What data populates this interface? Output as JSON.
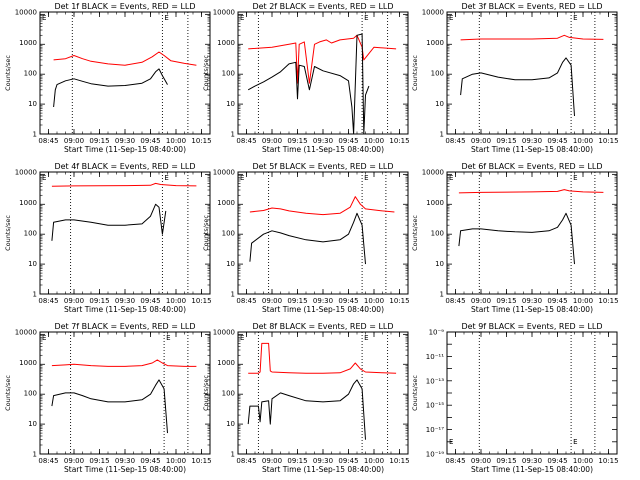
{
  "chart_data": [
    {
      "type": "line",
      "title": "Det 1f BLACK = Events, RED = LLD",
      "xlabel": "Start Time (11-Sep-15 08:40:00)",
      "ylabel": "Counts/sec",
      "yscale": "log",
      "ylim": [
        1,
        12000
      ],
      "ytick_labels": [
        "1",
        "10",
        "100",
        "1000",
        "10000"
      ],
      "xlim_minutes_after_start": [
        0,
        100
      ],
      "xtick_labels": [
        "08:45",
        "09:00",
        "09:15",
        "09:30",
        "09:45",
        "10:00",
        "10:15"
      ],
      "vlines": [
        "08:59",
        "09:52",
        "10:07"
      ],
      "markers": [
        "E",
        "E"
      ],
      "series": [
        {
          "color": "#ff0000",
          "x": [
            "08:48",
            "08:55",
            "09:00",
            "09:05",
            "09:10",
            "09:20",
            "09:30",
            "09:40",
            "09:46",
            "09:50",
            "09:53",
            "09:57",
            "10:05",
            "10:12"
          ],
          "y": [
            300,
            330,
            420,
            330,
            270,
            220,
            200,
            250,
            380,
            550,
            420,
            280,
            230,
            200
          ]
        },
        {
          "color": "#000000",
          "x": [
            "08:48",
            "08:49",
            "08:50",
            "08:55",
            "09:00",
            "09:05",
            "09:10",
            "09:20",
            "09:30",
            "09:40",
            "09:45",
            "09:48",
            "09:50",
            "09:52",
            "09:55"
          ],
          "y": [
            8,
            30,
            45,
            60,
            70,
            58,
            48,
            40,
            42,
            50,
            70,
            120,
            150,
            90,
            45
          ]
        }
      ]
    },
    {
      "type": "line",
      "title": "Det 2f BLACK = Events, RED = LLD",
      "xlabel": "Start Time (11-Sep-15 08:40:00)",
      "ylabel": "Counts/sec",
      "yscale": "log",
      "ylim": [
        1,
        12000
      ],
      "ytick_labels": [
        "1",
        "10",
        "100",
        "1000",
        "10000"
      ],
      "xlim_minutes_after_start": [
        0,
        100
      ],
      "xtick_labels": [
        "08:45",
        "09:00",
        "09:15",
        "09:30",
        "09:45",
        "10:00",
        "10:15"
      ],
      "vlines": [
        "08:52",
        "09:53",
        "10:08"
      ],
      "markers": [
        "E",
        "E"
      ],
      "series": [
        {
          "color": "#ff0000",
          "x": [
            "08:46",
            "09:00",
            "09:10",
            "09:14",
            "09:15",
            "09:16",
            "09:19",
            "09:22",
            "09:25",
            "09:28",
            "09:32",
            "09:35",
            "09:40",
            "09:48",
            "09:50",
            "09:53",
            "09:54",
            "10:00",
            "10:13"
          ],
          "y": [
            700,
            800,
            1000,
            1100,
            50,
            1000,
            1200,
            50,
            1000,
            1200,
            1400,
            1100,
            1400,
            1600,
            2000,
            800,
            300,
            800,
            700
          ]
        },
        {
          "color": "#000000",
          "x": [
            "08:46",
            "08:50",
            "08:55",
            "09:00",
            "09:05",
            "09:10",
            "09:14",
            "09:15",
            "09:16",
            "09:19",
            "09:22",
            "09:25",
            "09:30",
            "09:40",
            "09:45",
            "09:47",
            "09:48",
            "09:50",
            "09:53",
            "09:54",
            "09:55",
            "09:57"
          ],
          "y": [
            30,
            40,
            55,
            80,
            120,
            220,
            250,
            15,
            200,
            180,
            30,
            180,
            130,
            90,
            60,
            8,
            1,
            2000,
            2200,
            1,
            20,
            40
          ]
        }
      ]
    },
    {
      "type": "line",
      "title": "Det 3f BLACK = Events, RED = LLD",
      "xlabel": "Start Time (11-Sep-15 08:40:00)",
      "ylabel": "Counts/sec",
      "yscale": "log",
      "ylim": [
        1,
        12000
      ],
      "ytick_labels": [
        "1",
        "10",
        "100",
        "1000",
        "10000"
      ],
      "xlim_minutes_after_start": [
        0,
        100
      ],
      "xtick_labels": [
        "08:45",
        "09:00",
        "09:15",
        "09:30",
        "09:45",
        "10:00",
        "10:15"
      ],
      "vlines": [
        "08:59",
        "09:53",
        "10:07"
      ],
      "markers": [
        "E",
        "E"
      ],
      "series": [
        {
          "color": "#ff0000",
          "x": [
            "08:48",
            "09:00",
            "09:30",
            "09:45",
            "09:49",
            "09:52",
            "10:00",
            "10:12"
          ],
          "y": [
            1400,
            1500,
            1500,
            1600,
            2000,
            1700,
            1500,
            1450
          ]
        },
        {
          "color": "#000000",
          "x": [
            "08:48",
            "08:49",
            "08:55",
            "09:00",
            "09:10",
            "09:20",
            "09:30",
            "09:40",
            "09:45",
            "09:48",
            "09:50",
            "09:53",
            "09:55"
          ],
          "y": [
            20,
            70,
            100,
            110,
            80,
            65,
            65,
            75,
            110,
            250,
            350,
            200,
            4
          ]
        }
      ]
    },
    {
      "type": "line",
      "title": "Det 4f BLACK = Events, RED = LLD",
      "xlabel": "Start Time (11-Sep-15 08:40:00)",
      "ylabel": "Counts/sec",
      "yscale": "log",
      "ylim": [
        1,
        12000
      ],
      "ytick_labels": [
        "1",
        "10",
        "100",
        "1000",
        "10000"
      ],
      "xlim_minutes_after_start": [
        0,
        100
      ],
      "xtick_labels": [
        "08:45",
        "09:00",
        "09:15",
        "09:30",
        "09:45",
        "10:00",
        "10:15"
      ],
      "vlines": [
        "08:58",
        "09:52",
        "10:07"
      ],
      "markers": [
        "E",
        "E"
      ],
      "series": [
        {
          "color": "#ff0000",
          "x": [
            "08:47",
            "09:00",
            "09:30",
            "09:45",
            "09:48",
            "09:51",
            "10:00",
            "10:12"
          ],
          "y": [
            4000,
            4100,
            4200,
            4300,
            5000,
            4600,
            4200,
            4100
          ]
        },
        {
          "color": "#000000",
          "x": [
            "08:47",
            "08:48",
            "08:55",
            "09:00",
            "09:10",
            "09:20",
            "09:30",
            "09:40",
            "09:45",
            "09:48",
            "09:50",
            "09:52",
            "09:54"
          ],
          "y": [
            60,
            250,
            300,
            300,
            250,
            200,
            200,
            220,
            400,
            1000,
            800,
            100,
            600
          ]
        }
      ]
    },
    {
      "type": "line",
      "title": "Det 5f BLACK = Events, RED = LLD",
      "xlabel": "Start Time (11-Sep-15 08:40:00)",
      "ylabel": "Counts/sec",
      "yscale": "log",
      "ylim": [
        1,
        12000
      ],
      "ytick_labels": [
        "1",
        "10",
        "100",
        "1000",
        "10000"
      ],
      "xlim_minutes_after_start": [
        0,
        100
      ],
      "xtick_labels": [
        "08:45",
        "09:00",
        "09:15",
        "09:30",
        "09:45",
        "10:00",
        "10:15"
      ],
      "vlines": [
        "08:58",
        "09:53",
        "10:07"
      ],
      "markers": [
        "E",
        "E"
      ],
      "series": [
        {
          "color": "#ff0000",
          "x": [
            "08:47",
            "08:55",
            "09:00",
            "09:05",
            "09:10",
            "09:20",
            "09:30",
            "09:40",
            "09:46",
            "09:49",
            "09:52",
            "09:55",
            "10:05",
            "10:12"
          ],
          "y": [
            550,
            620,
            750,
            700,
            600,
            500,
            450,
            500,
            800,
            1800,
            1000,
            700,
            600,
            550
          ]
        },
        {
          "color": "#000000",
          "x": [
            "08:47",
            "08:48",
            "08:55",
            "09:00",
            "09:05",
            "09:10",
            "09:20",
            "09:30",
            "09:40",
            "09:45",
            "09:48",
            "09:50",
            "09:53",
            "09:55"
          ],
          "y": [
            12,
            50,
            100,
            130,
            110,
            90,
            65,
            55,
            65,
            100,
            250,
            500,
            200,
            10
          ]
        }
      ]
    },
    {
      "type": "line",
      "title": "Det 6f BLACK = Events, RED = LLD",
      "xlabel": "Start Time (11-Sep-15 08:40:00)",
      "ylabel": "Counts/sec",
      "yscale": "log",
      "ylim": [
        1,
        12000
      ],
      "ytick_labels": [
        "1",
        "10",
        "100",
        "1000",
        "10000"
      ],
      "xlim_minutes_after_start": [
        0,
        100
      ],
      "xtick_labels": [
        "08:45",
        "09:00",
        "09:15",
        "09:30",
        "09:45",
        "10:00",
        "10:15"
      ],
      "vlines": [
        "08:59",
        "09:53",
        "10:07"
      ],
      "markers": [
        "E",
        "E"
      ],
      "series": [
        {
          "color": "#ff0000",
          "x": [
            "08:47",
            "09:00",
            "09:30",
            "09:45",
            "09:49",
            "09:52",
            "10:00",
            "10:12"
          ],
          "y": [
            2400,
            2500,
            2600,
            2700,
            3100,
            2800,
            2600,
            2500
          ]
        },
        {
          "color": "#000000",
          "x": [
            "08:47",
            "08:48",
            "08:55",
            "09:00",
            "09:10",
            "09:20",
            "09:30",
            "09:40",
            "09:45",
            "09:48",
            "09:50",
            "09:53",
            "09:55"
          ],
          "y": [
            40,
            130,
            150,
            150,
            130,
            120,
            115,
            130,
            170,
            300,
            500,
            200,
            10
          ]
        }
      ]
    },
    {
      "type": "line",
      "title": "Det 7f BLACK = Events, RED = LLD",
      "xlabel": "Start Time (11-Sep-15 08:40:00)",
      "ylabel": "Counts/sec",
      "yscale": "log",
      "ylim": [
        1,
        12000
      ],
      "ytick_labels": [
        "1",
        "10",
        "100",
        "1000",
        "10000"
      ],
      "xlim_minutes_after_start": [
        0,
        100
      ],
      "xtick_labels": [
        "08:45",
        "09:00",
        "09:15",
        "09:30",
        "09:45",
        "10:00",
        "10:15"
      ],
      "vlines": [
        "08:58",
        "09:53",
        "10:07"
      ],
      "markers": [
        "E",
        "E"
      ],
      "series": [
        {
          "color": "#ff0000",
          "x": [
            "08:47",
            "08:55",
            "09:00",
            "09:10",
            "09:20",
            "09:30",
            "09:40",
            "09:46",
            "09:49",
            "09:52",
            "09:55",
            "10:05",
            "10:12"
          ],
          "y": [
            900,
            950,
            1000,
            900,
            850,
            850,
            900,
            1100,
            1400,
            1100,
            900,
            850,
            850
          ]
        },
        {
          "color": "#000000",
          "x": [
            "08:47",
            "08:48",
            "08:55",
            "09:00",
            "09:05",
            "09:10",
            "09:20",
            "09:30",
            "09:40",
            "09:45",
            "09:48",
            "09:50",
            "09:53",
            "09:55"
          ],
          "y": [
            40,
            90,
            110,
            110,
            90,
            70,
            55,
            55,
            65,
            100,
            200,
            300,
            150,
            5
          ]
        }
      ]
    },
    {
      "type": "line",
      "title": "Det 8f BLACK = Events, RED = LLD",
      "xlabel": "Start Time (11-Sep-15 08:40:00)",
      "ylabel": "Counts/sec",
      "yscale": "log",
      "ylim": [
        1,
        12000
      ],
      "ytick_labels": [
        "1",
        "10",
        "100",
        "1000",
        "10000"
      ],
      "xlim_minutes_after_start": [
        0,
        100
      ],
      "xtick_labels": [
        "08:45",
        "09:00",
        "09:15",
        "09:30",
        "09:45",
        "10:00",
        "10:15"
      ],
      "vlines": [
        "08:52",
        "09:53",
        "10:08"
      ],
      "markers": [
        "E",
        "E"
      ],
      "series": [
        {
          "color": "#ff0000",
          "x": [
            "08:46",
            "08:52",
            "08:53",
            "08:54",
            "08:58",
            "08:59",
            "09:00",
            "09:10",
            "09:20",
            "09:30",
            "09:40",
            "09:46",
            "09:49",
            "09:52",
            "09:55",
            "10:05",
            "10:13"
          ],
          "y": [
            500,
            500,
            550,
            5000,
            5000,
            600,
            550,
            520,
            500,
            500,
            520,
            700,
            1100,
            700,
            550,
            520,
            500
          ]
        },
        {
          "color": "#000000",
          "x": [
            "08:46",
            "08:47",
            "08:52",
            "08:53",
            "08:54",
            "08:58",
            "08:59",
            "09:00",
            "09:05",
            "09:10",
            "09:20",
            "09:30",
            "09:40",
            "09:45",
            "09:48",
            "09:50",
            "09:53",
            "09:55"
          ],
          "y": [
            10,
            40,
            40,
            12,
            55,
            60,
            10,
            70,
            110,
            90,
            60,
            55,
            60,
            100,
            220,
            300,
            150,
            3
          ]
        }
      ]
    },
    {
      "type": "line",
      "title": "Det 9f BLACK = Events, RED = LLD",
      "xlabel": "Start Time (11-Sep-15 08:40:00)",
      "ylabel": "Counts/sec",
      "yscale": "log",
      "ylim": [
        1e-19,
        1e-09
      ],
      "ytick_labels": [
        "10⁻¹⁹",
        "10⁻¹⁷",
        "10⁻¹⁵",
        "10⁻¹³",
        "10⁻¹¹",
        "10⁻⁹"
      ],
      "xlim_minutes_after_start": [
        0,
        100
      ],
      "xtick_labels": [
        "08:45",
        "09:00",
        "09:15",
        "09:30",
        "09:45",
        "10:00",
        "10:15"
      ],
      "vlines": [
        "08:59",
        "09:53",
        "10:07"
      ],
      "markers": [
        "E",
        "E"
      ],
      "series": []
    }
  ]
}
